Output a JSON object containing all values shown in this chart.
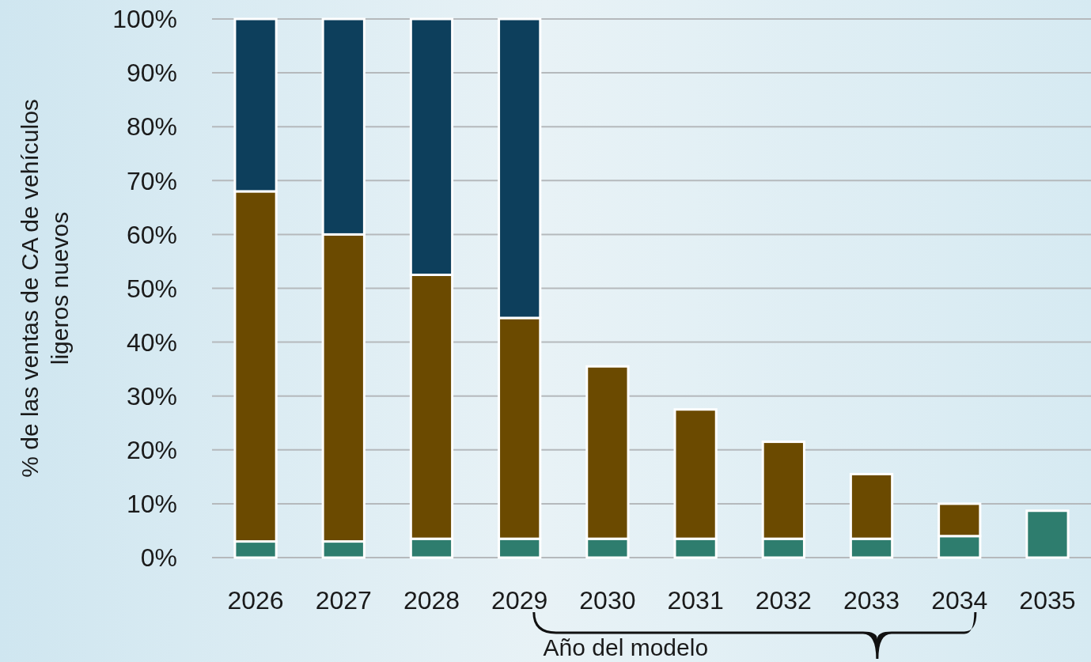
{
  "chart_data": {
    "type": "bar",
    "stacked": true,
    "xlabel": "Año del modelo",
    "ylabel": "% de las ventas de CA de vehículos ligeros nuevos",
    "categories": [
      "2026",
      "2027",
      "2028",
      "2029",
      "2030",
      "2031",
      "2032",
      "2033",
      "2034",
      "2035"
    ],
    "series": [
      {
        "color": "#2e7d6e",
        "values": [
          3,
          3,
          3.5,
          3.5,
          3.5,
          3.5,
          3.5,
          3.5,
          4,
          8.7
        ]
      },
      {
        "color": "#6b4a00",
        "values": [
          65,
          57,
          49,
          41,
          32,
          24,
          18,
          12,
          6,
          null
        ]
      },
      {
        "color": "#0d3f5c",
        "values": [
          32,
          40,
          47.5,
          55.5,
          null,
          null,
          null,
          null,
          null,
          null
        ]
      }
    ],
    "ylim": [
      0,
      100
    ],
    "yticks": [
      {
        "value": 0,
        "label": "0%"
      },
      {
        "value": 10,
        "label": "10%"
      },
      {
        "value": 20,
        "label": "20%"
      },
      {
        "value": 30,
        "label": "30%"
      },
      {
        "value": 40,
        "label": "40%"
      },
      {
        "value": 50,
        "label": "50%"
      },
      {
        "value": 60,
        "label": "60%"
      },
      {
        "value": 70,
        "label": "70%"
      },
      {
        "value": 80,
        "label": "80%"
      },
      {
        "value": 90,
        "label": "90%"
      },
      {
        "value": 100,
        "label": "100%"
      }
    ],
    "grid": "y"
  }
}
